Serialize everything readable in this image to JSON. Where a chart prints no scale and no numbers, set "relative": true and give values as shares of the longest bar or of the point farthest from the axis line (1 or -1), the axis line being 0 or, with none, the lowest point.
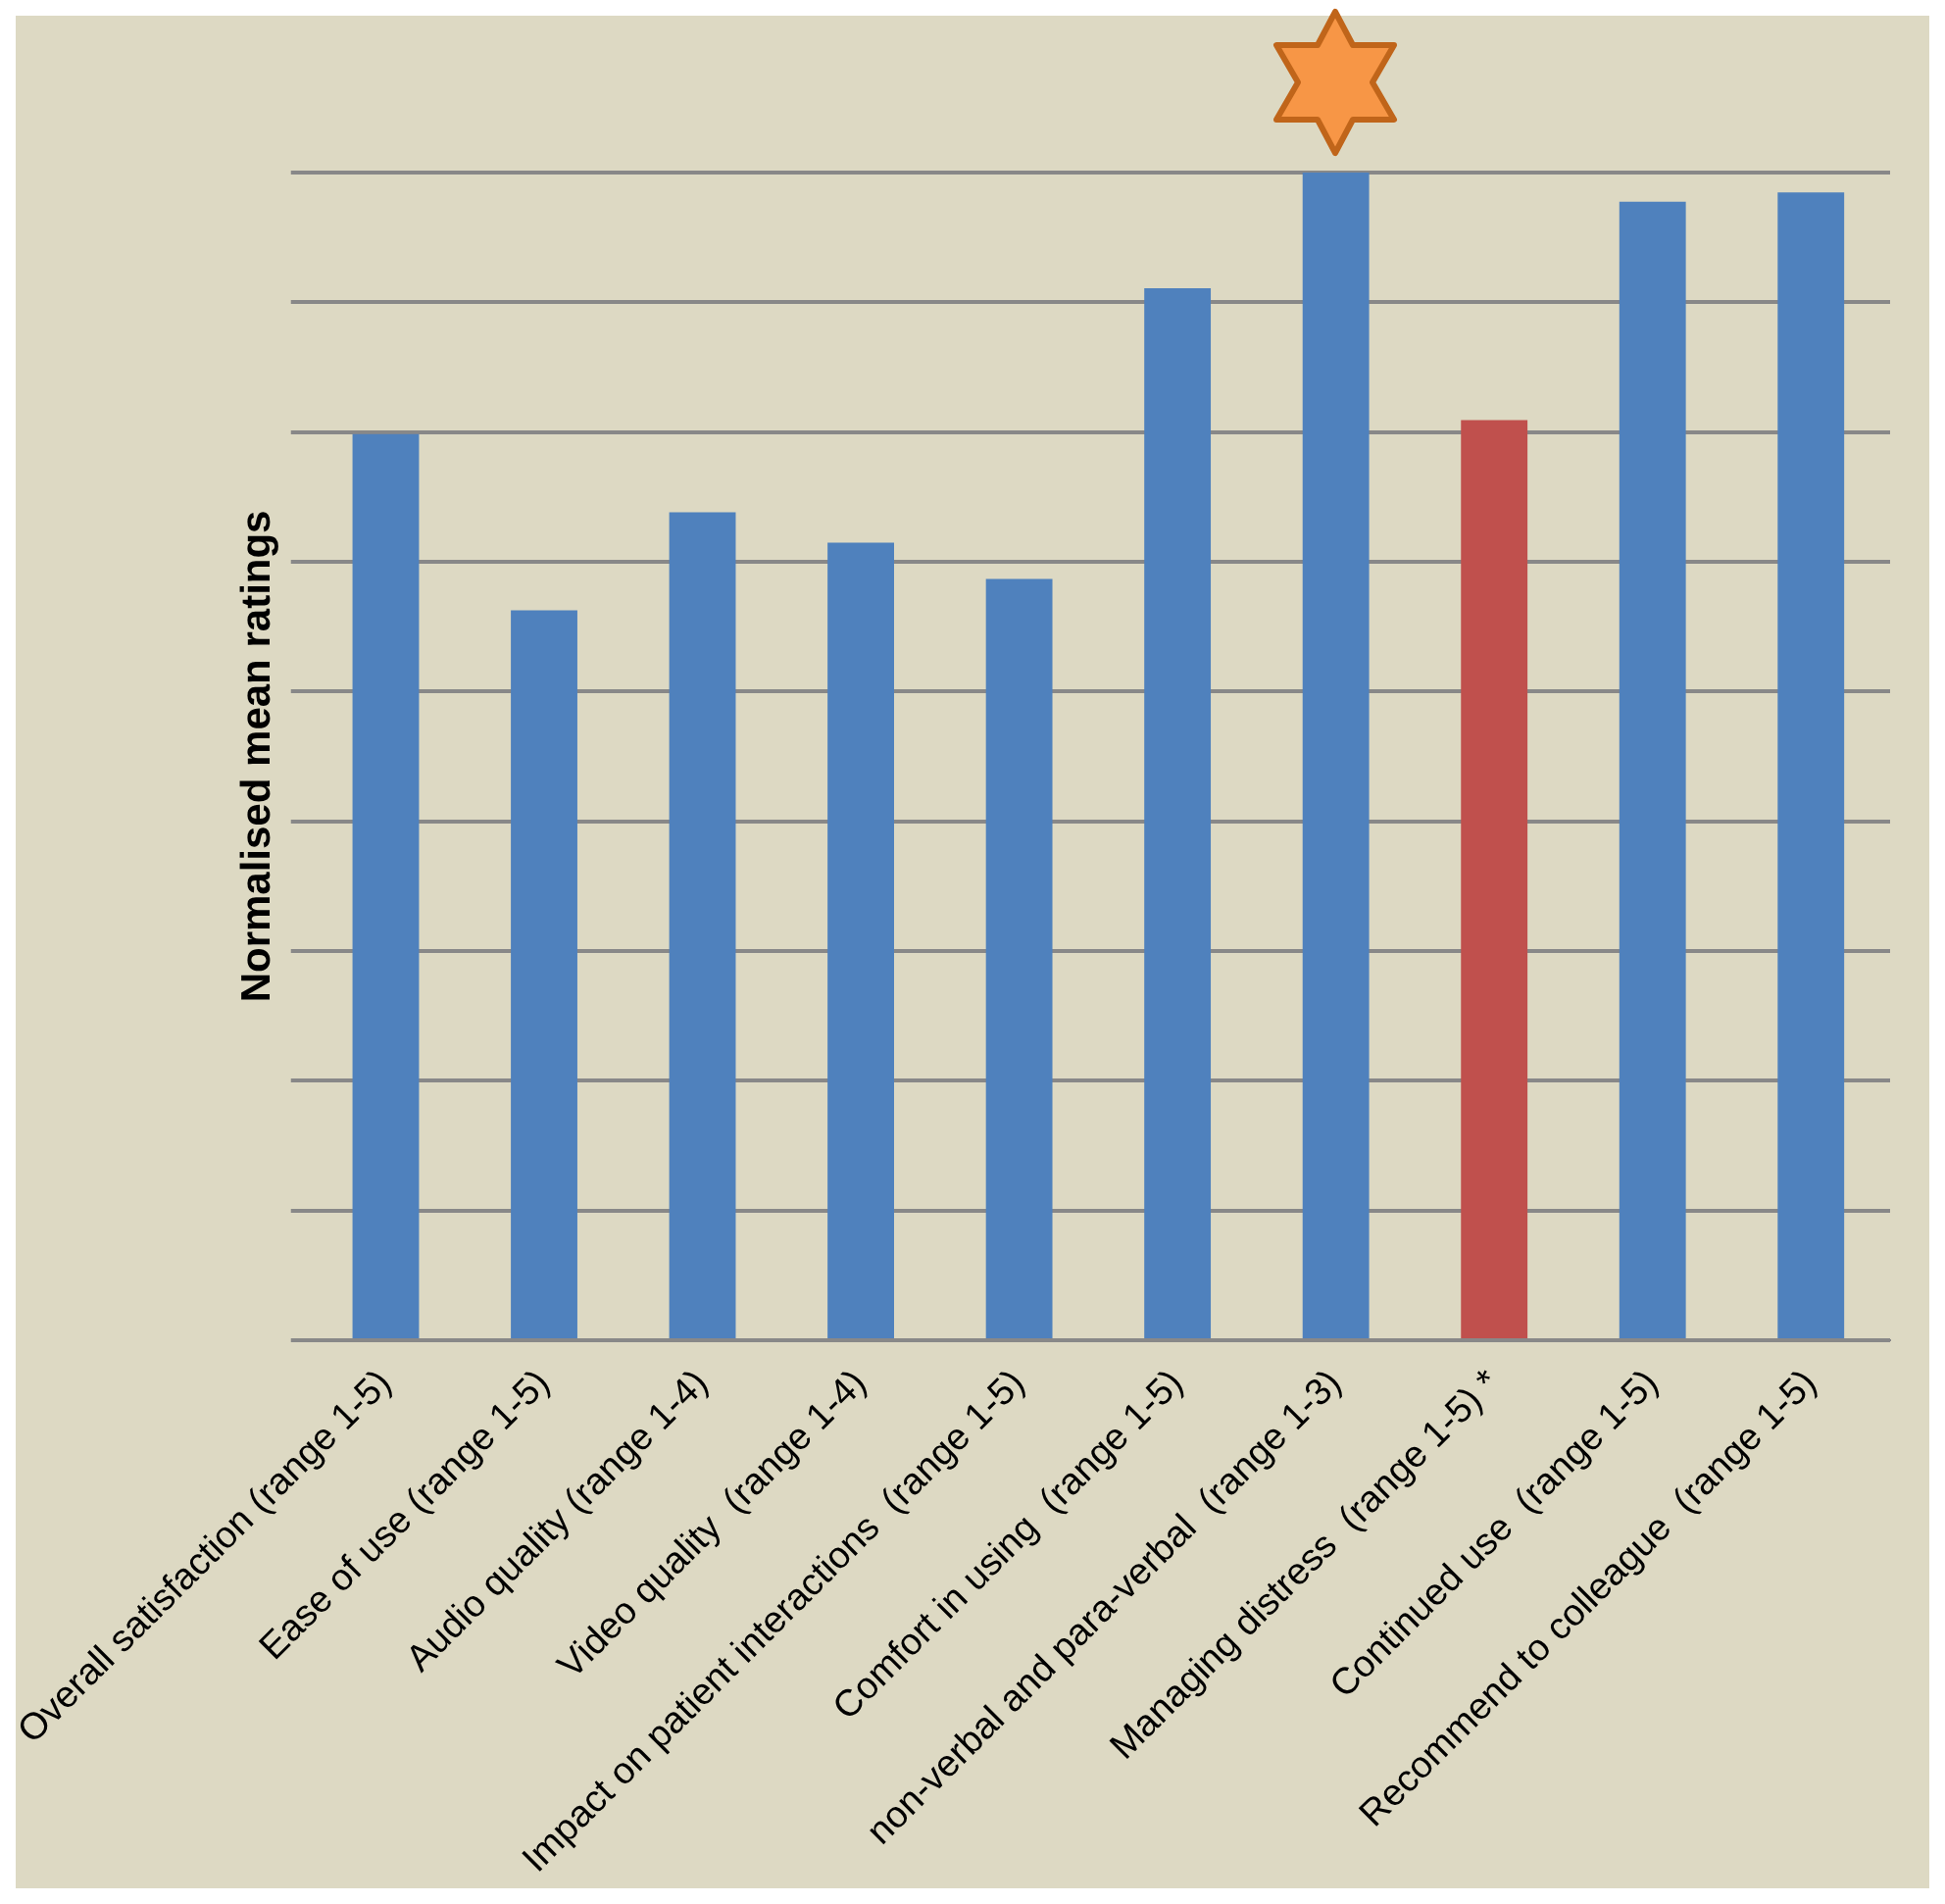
{
  "chart_data": {
    "type": "bar",
    "ylabel": "Normalised mean ratings",
    "relative": true,
    "grid": true,
    "categories": [
      "Overall satisfaction (range 1-5)",
      "Ease of use (range 1-5)",
      "Audio quality (range 1-4)",
      "Video quality  (range 1-4)",
      "Impact on patient interactions  (range 1-5)",
      "Comfort in using  (range 1-5)",
      "non-verbal and para-verbal  (range 1-3)",
      "Managing distress  (range 1-5) *",
      "Continued use  (range 1-5)",
      "Recommend to colleague  (range 1-5)"
    ],
    "values": [
      0.776,
      0.625,
      0.709,
      0.683,
      0.652,
      0.901,
      1,
      0.788,
      0.975,
      0.983
    ],
    "colors": [
      "#4f81bd",
      "#4f81bd",
      "#4f81bd",
      "#4f81bd",
      "#4f81bd",
      "#4f81bd",
      "#4f81bd",
      "#c0504d",
      "#4f81bd",
      "#4f81bd"
    ]
  }
}
